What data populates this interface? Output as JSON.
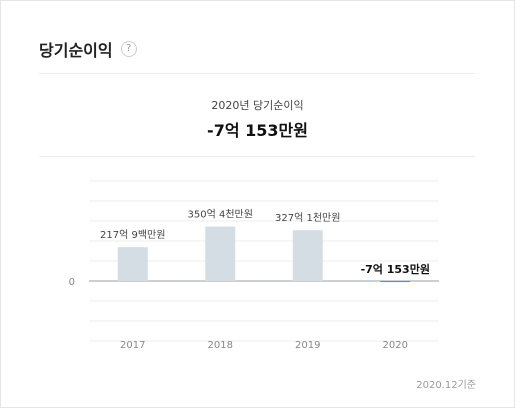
{
  "card": {
    "title": "당기순이익",
    "help_icon": "question-circle-icon",
    "help_text": "?"
  },
  "summary": {
    "label": "2020년 당기순이익",
    "value": "-7억 153만원"
  },
  "footnote": "2020.12기준",
  "colors": {
    "positive_bar": "#d5dde4",
    "negative_bar": "#3d9bef",
    "gridline": "#eeeeee",
    "baseline": "#9aa0a6",
    "text": "#444444",
    "tick": "#888888"
  },
  "chart_data": {
    "type": "bar",
    "categories": [
      "2017",
      "2018",
      "2019",
      "2020"
    ],
    "values": [
      217.9,
      350.4,
      327.1,
      -7.0153
    ],
    "value_unit": "억원",
    "data_labels": [
      "217억 9백만원",
      "350억 4천만원",
      "327억 1천만원",
      "-7억 153만원"
    ],
    "highlight_index": 3,
    "y_tick_labels": [
      {
        "value": 0,
        "label": "0"
      }
    ],
    "ylim": [
      -160,
      440
    ],
    "grid": true,
    "xlabel": "",
    "ylabel": ""
  }
}
